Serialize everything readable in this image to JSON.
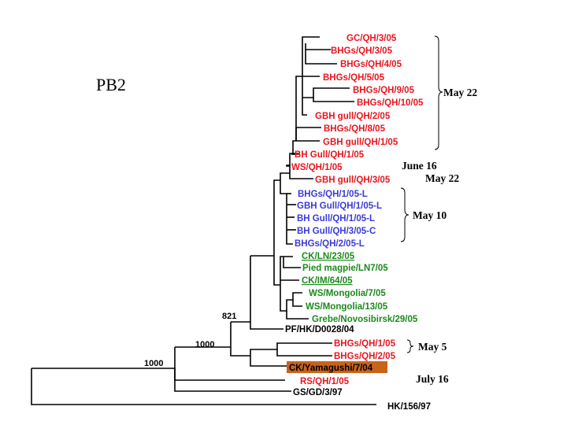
{
  "title": "PB2",
  "colors": {
    "red_clade": "#e8141e",
    "blue_clade": "#3a3adb",
    "green_clade": "#1a8a1a",
    "black": "#000000",
    "highlight_bg": "#c8641a"
  },
  "clades": {
    "red": [
      "GC/QH/3/05",
      "BHGs/QH/3/05",
      "BHGs/QH/4/05",
      "BHGs/QH/5/05",
      "BHGs/QH/9/05",
      "BHGs/QH/10/05",
      "GBH gull/QH/2/05",
      "BHGs/QH/8/05",
      "GBH gull/QH/1/05",
      "BH Gull/QH/1/05",
      "WS/QH/1/05",
      "GBH gull/QH/3/05"
    ],
    "blue": [
      "BHGs/QH/1/05-L",
      "GBH Gull/QH/1/05-L",
      "BH Gull/QH/1/05-L",
      "BH Gull/QH/3/05-C",
      "BHGs/QH/2/05-L"
    ],
    "green": [
      "CK/LN/23/05",
      "Pied magpie/LN7/05",
      "CK/IM/64/05",
      "WS/Mongolia/7/05",
      "WS/Mongolia/13/05",
      "Grebe/Novosibirsk/29/05"
    ],
    "other": [
      "PF/HK/D0028/04",
      "BHGs/QH/1/05",
      "BHGs/QH/2/05",
      "CK/Yamagushi/7/04",
      "RS/QH/1/05",
      "GS/GD/3/97",
      "HK/156/97"
    ]
  },
  "bootstrap": [
    "821",
    "1000",
    "1000"
  ],
  "dates": {
    "may22_a": "May 22",
    "june16": "June 16",
    "may22_b": "May 22",
    "may10": "May 10",
    "may5": "May 5",
    "july16": "July 16"
  }
}
